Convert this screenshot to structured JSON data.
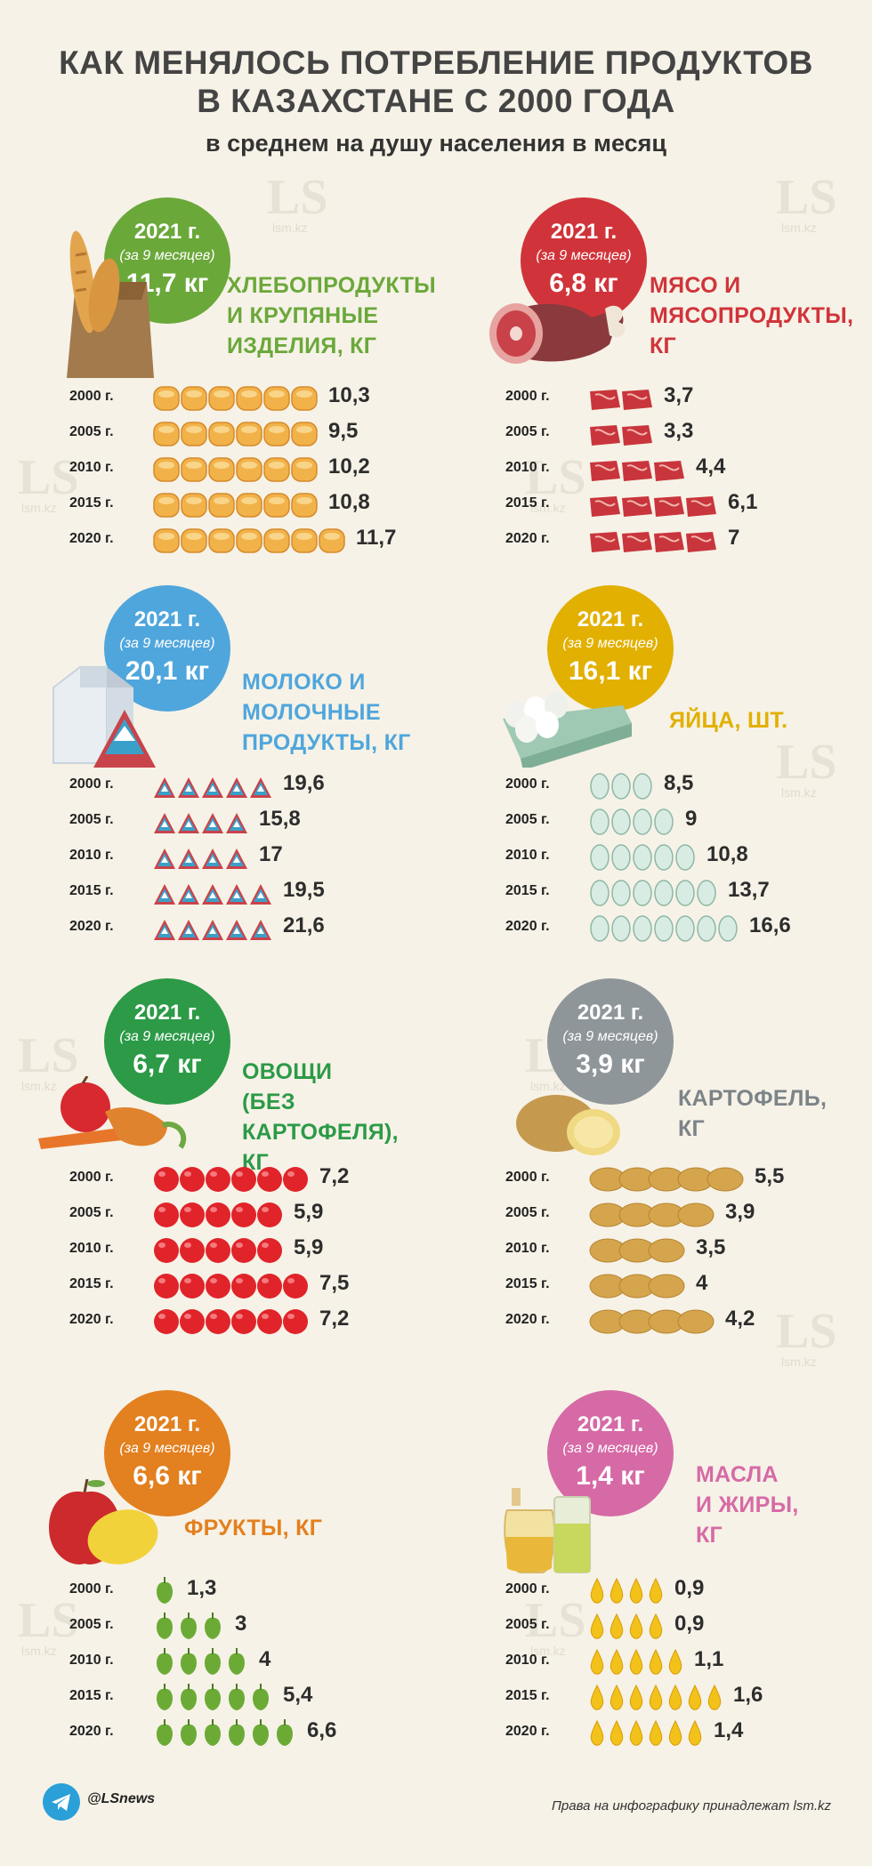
{
  "header": {
    "title_line1": "КАК МЕНЯЛОСЬ ПОТРЕБЛЕНИЕ ПРОДУКТОВ",
    "title_line2": "В КАЗАХСТАНЕ С 2000 ГОДА",
    "subtitle": "в среднем на душу населения в месяц"
  },
  "watermark": {
    "logo": "LS",
    "site": "lsm.kz"
  },
  "footer": {
    "handle": "@LSnews",
    "rights": "Права на инфографику принадлежат lsm.kz",
    "icon": "telegram-icon"
  },
  "chart_data": [
    {
      "type": "pictograph",
      "id": "bread",
      "title": "ХЛЕБОПРОДУКТЫ\nИ КРУПЯНЫЕ\nИЗДЕЛИЯ, КГ",
      "badge": {
        "year": "2021 г.",
        "note": "(за 9 месяцев)",
        "value": "11,7 кг"
      },
      "color": "#6ba83a",
      "icon": "bread-bun-icon",
      "categories": [
        "2000 г.",
        "2005 г.",
        "2010 г.",
        "2015 г.",
        "2020 г."
      ],
      "values": [
        10.3,
        9.5,
        10.2,
        10.8,
        11.7
      ],
      "labels": [
        "10,3",
        "9,5",
        "10,2",
        "10,8",
        "11,7"
      ]
    },
    {
      "type": "pictograph",
      "id": "meat",
      "title": "МЯСО И\nМЯСОПРОДУКТЫ,\nКГ",
      "badge": {
        "year": "2021 г.",
        "note": "(за 9 месяцев)",
        "value": "6,8 кг"
      },
      "color": "#d0343a",
      "icon": "meat-steak-icon",
      "categories": [
        "2000 г.",
        "2005 г.",
        "2010 г.",
        "2015 г.",
        "2020 г."
      ],
      "values": [
        3.7,
        3.3,
        4.4,
        6.1,
        7
      ],
      "labels": [
        "3,7",
        "3,3",
        "4,4",
        "6,1",
        "7"
      ]
    },
    {
      "type": "pictograph",
      "id": "milk",
      "title": "МОЛОКО И\nМОЛОЧНЫЕ\nПРОДУКТЫ, КГ",
      "badge": {
        "year": "2021 г.",
        "note": "(за 9 месяцев)",
        "value": "20,1 кг"
      },
      "color": "#4fa6dc",
      "icon": "milk-carton-icon",
      "categories": [
        "2000 г.",
        "2005 г.",
        "2010 г.",
        "2015 г.",
        "2020 г."
      ],
      "values": [
        19.6,
        15.8,
        17,
        19.5,
        21.6
      ],
      "labels": [
        "19,6",
        "15,8",
        "17",
        "19,5",
        "21,6"
      ]
    },
    {
      "type": "pictograph",
      "id": "eggs",
      "title": "ЯЙЦА, ШТ.",
      "badge": {
        "year": "2021 г.",
        "note": "(за 9 месяцев)",
        "value": "16,1 кг"
      },
      "color": "#e2b000",
      "icon": "egg-icon",
      "categories": [
        "2000 г.",
        "2005 г.",
        "2010 г.",
        "2015 г.",
        "2020 г."
      ],
      "values": [
        8.5,
        9,
        10.8,
        13.7,
        16.6
      ],
      "labels": [
        "8,5",
        "9",
        "10,8",
        "13,7",
        "16,6"
      ]
    },
    {
      "type": "pictograph",
      "id": "vegetables",
      "title": "ОВОЩИ\n(БЕЗ КАРТОФЕЛЯ),\nКГ",
      "badge": {
        "year": "2021 г.",
        "note": "(за 9 месяцев)",
        "value": "6,7 кг"
      },
      "color": "#2c9a47",
      "icon": "tomato-icon",
      "categories": [
        "2000 г.",
        "2005 г.",
        "2010 г.",
        "2015 г.",
        "2020 г."
      ],
      "values": [
        7.2,
        5.9,
        5.9,
        7.5,
        7.2
      ],
      "labels": [
        "7,2",
        "5,9",
        "5,9",
        "7,5",
        "7,2"
      ]
    },
    {
      "type": "pictograph",
      "id": "potato",
      "title": "КАРТОФЕЛЬ,\nКГ",
      "badge": {
        "year": "2021 г.",
        "note": "(за 9 месяцев)",
        "value": "3,9 кг"
      },
      "color": "#8f969a",
      "icon": "potato-icon",
      "categories": [
        "2000 г.",
        "2005 г.",
        "2010 г.",
        "2015 г.",
        "2020 г."
      ],
      "values": [
        5.5,
        3.9,
        3.5,
        4,
        4.2
      ],
      "labels": [
        "5,5",
        "3,9",
        "3,5",
        "4",
        "4,2"
      ]
    },
    {
      "type": "pictograph",
      "id": "fruits",
      "title": "ФРУКТЫ, КГ",
      "badge": {
        "year": "2021 г.",
        "note": "(за 9 месяцев)",
        "value": "6,6 кг"
      },
      "color": "#e3801f",
      "icon": "green-apple-icon",
      "categories": [
        "2000 г.",
        "2005 г.",
        "2010 г.",
        "2015 г.",
        "2020 г."
      ],
      "values": [
        1.3,
        3,
        4,
        5.4,
        6.6
      ],
      "labels": [
        "1,3",
        "3",
        "4",
        "5,4",
        "6,6"
      ]
    },
    {
      "type": "pictograph",
      "id": "oils",
      "title": "МАСЛА\nИ ЖИРЫ,\nКГ",
      "badge": {
        "year": "2021 г.",
        "note": "(за 9 месяцев)",
        "value": "1,4 кг"
      },
      "color": "#d66aa6",
      "icon": "oil-drop-icon",
      "categories": [
        "2000 г.",
        "2005 г.",
        "2010 г.",
        "2015 г.",
        "2020 г."
      ],
      "values": [
        0.9,
        0.9,
        1.1,
        1.6,
        1.4
      ],
      "labels": [
        "0,9",
        "0,9",
        "1,1",
        "1,6",
        "1,4"
      ]
    }
  ]
}
